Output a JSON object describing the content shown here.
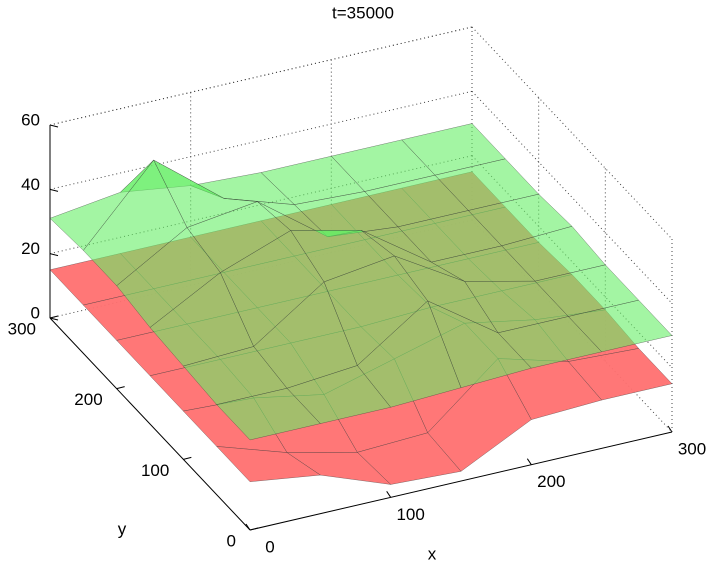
{
  "chart_data": {
    "type": "surface3d",
    "title": "t=35000",
    "xlabel": "x",
    "ylabel": "y",
    "x": [
      0,
      50,
      100,
      150,
      200,
      250,
      300
    ],
    "y": [
      0,
      50,
      100,
      150,
      200,
      250,
      300
    ],
    "xlim": [
      0,
      300
    ],
    "ylim": [
      0,
      300
    ],
    "zlim": [
      0,
      60
    ],
    "xticks": [
      0,
      100,
      200,
      300
    ],
    "yticks": [
      0,
      100,
      200,
      300
    ],
    "zticks": [
      0,
      20,
      40,
      60
    ],
    "series": [
      {
        "color": "#ff7070",
        "values": [
          [
            15,
            12,
            4,
            3,
            14,
            15,
            15
          ],
          [
            15,
            8,
            3,
            4,
            22,
            16,
            15
          ],
          [
            15,
            14,
            10,
            16,
            22,
            18,
            16
          ],
          [
            15,
            15,
            15,
            15,
            16,
            16,
            16
          ],
          [
            15,
            15,
            15,
            15,
            15,
            15,
            15
          ],
          [
            15,
            15,
            15,
            15,
            15,
            15,
            15
          ],
          [
            15,
            15,
            15,
            15,
            15,
            15,
            15
          ]
        ]
      },
      {
        "color": "#66ee66",
        "values": [
          [
            28,
            28,
            28,
            29,
            30,
            30,
            30
          ],
          [
            28,
            28,
            30,
            45,
            30,
            30,
            30
          ],
          [
            29,
            30,
            45,
            48,
            35,
            30,
            30
          ],
          [
            30,
            42,
            50,
            45,
            30,
            30,
            31
          ],
          [
            32,
            45,
            48,
            32,
            30,
            30,
            30
          ],
          [
            32,
            55,
            38,
            31,
            30,
            30,
            30
          ],
          [
            31,
            34,
            31,
            30,
            30,
            30,
            30
          ]
        ]
      }
    ]
  }
}
